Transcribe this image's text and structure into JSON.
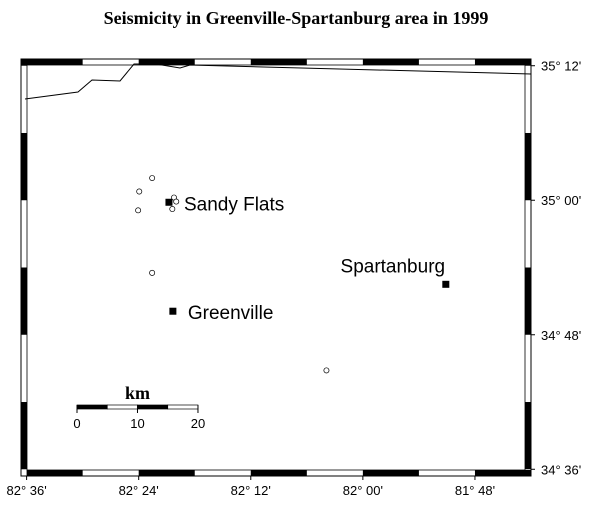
{
  "map": {
    "title": "Seismicity in Greenville-Spartanburg area in 1999",
    "xlim": [
      -82.61,
      -81.7
    ],
    "ylim": [
      34.59,
      35.21
    ],
    "xticks": [
      {
        "value": -82.6,
        "label": "82° 36'"
      },
      {
        "value": -82.4,
        "label": "82° 24'"
      },
      {
        "value": -82.2,
        "label": "82° 12'"
      },
      {
        "value": -82.0,
        "label": "82° 00'"
      },
      {
        "value": -81.8,
        "label": "81° 48'"
      }
    ],
    "yticks": [
      {
        "value": 34.6,
        "label": "34° 36'"
      },
      {
        "value": 34.8,
        "label": "34° 48'"
      },
      {
        "value": 35.0,
        "label": "35° 00'"
      },
      {
        "value": 35.2,
        "label": "35° 12'"
      }
    ],
    "cities": [
      {
        "name": "Sandy Flats",
        "lon": -82.346,
        "lat": 34.997
      },
      {
        "name": "Greenville",
        "lon": -82.339,
        "lat": 34.835
      },
      {
        "name": "Spartanburg",
        "lon": -81.852,
        "lat": 34.875
      }
    ],
    "events": {
      "lon": [
        -82.376,
        -82.399,
        -82.337,
        -82.333,
        -82.34,
        -82.401,
        -82.376,
        -82.065
      ],
      "lat": [
        35.033,
        35.013,
        35.004,
        34.998,
        34.987,
        34.985,
        34.892,
        34.747
      ]
    },
    "scale_bar": {
      "label": "km",
      "ticks": [
        0,
        10,
        20
      ]
    }
  }
}
